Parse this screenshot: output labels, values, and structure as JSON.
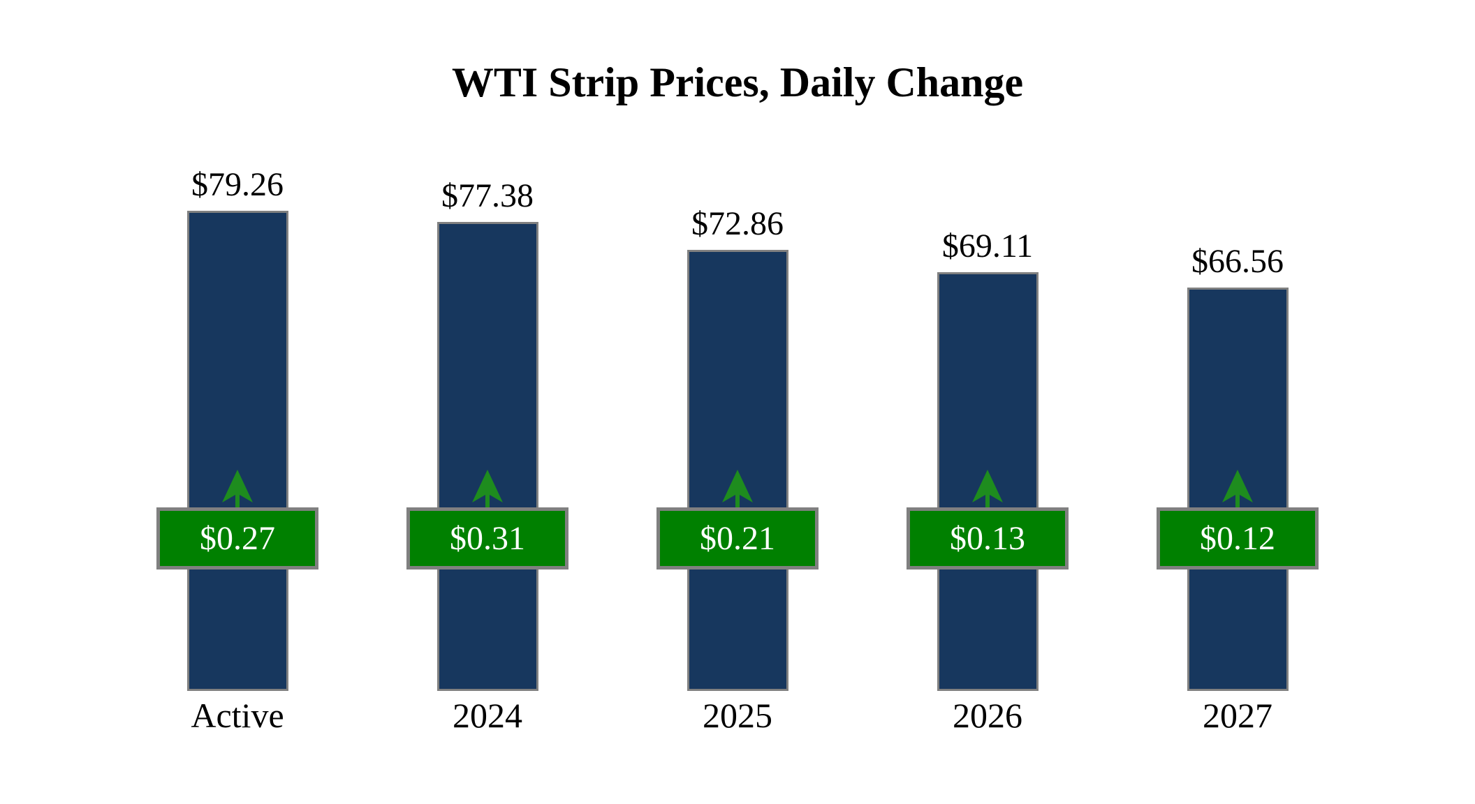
{
  "chart_data": {
    "type": "bar",
    "title": "WTI Strip Prices, Daily Change",
    "categories": [
      "Active",
      "2024",
      "2025",
      "2026",
      "2027"
    ],
    "series": [
      {
        "name": "strip_price",
        "values": [
          79.26,
          77.38,
          72.86,
          69.11,
          66.56
        ],
        "labels": [
          "$79.26",
          "$77.38",
          "$72.86",
          "$69.11",
          "$66.56"
        ]
      },
      {
        "name": "daily_change",
        "values": [
          0.27,
          0.31,
          0.21,
          0.13,
          0.12
        ],
        "labels": [
          "$0.27",
          "$0.31",
          "$0.21",
          "$0.13",
          "$0.12"
        ],
        "direction": "up"
      }
    ],
    "xlabel": "",
    "ylabel": "",
    "axes_visible": false,
    "grid": false,
    "legend": false,
    "colors": {
      "bar_fill": "#17375E",
      "bar_border": "#808080",
      "badge_fill": "#008000",
      "badge_border": "#808080",
      "badge_text": "#FFFFFF",
      "arrow": "#1E8C1E",
      "label_text": "#000000",
      "background": "#FFFFFF"
    }
  }
}
